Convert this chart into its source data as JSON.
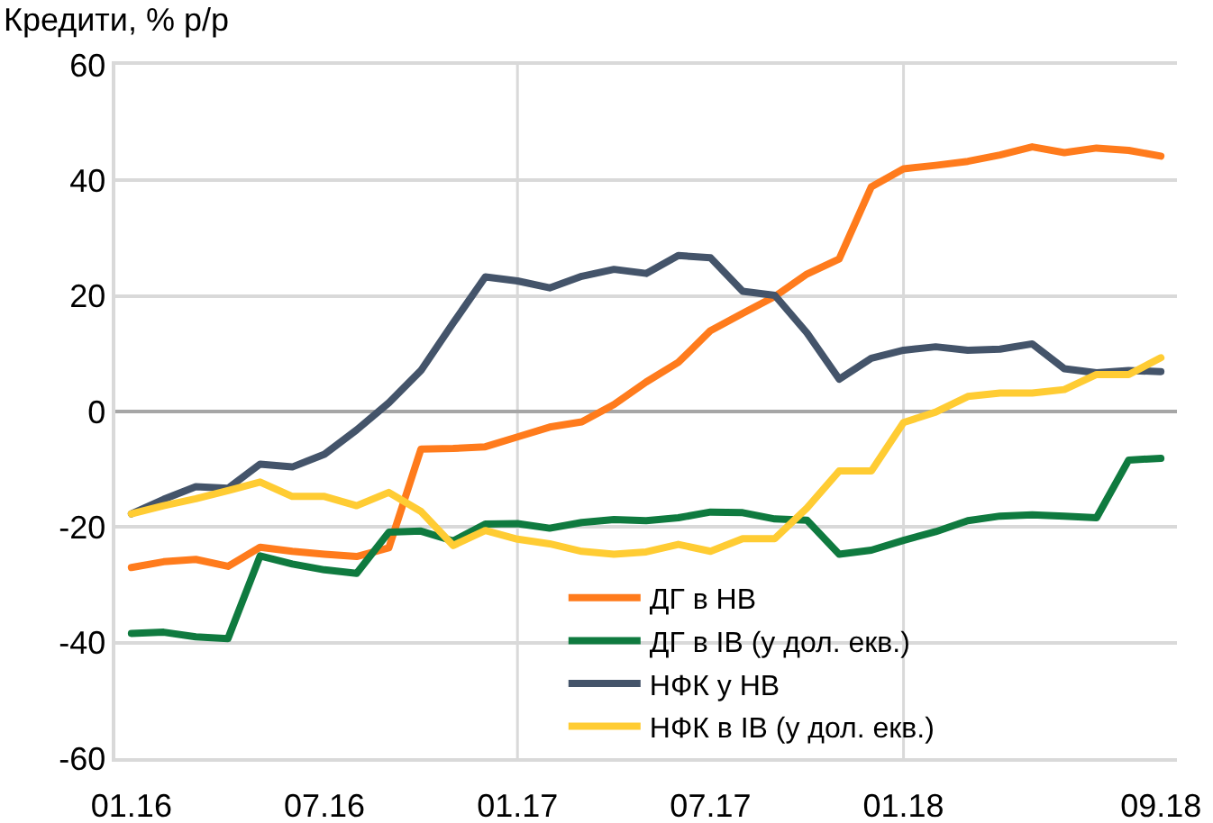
{
  "chart_data": {
    "type": "line",
    "title": "Кредити, % р/р",
    "categories": [
      "01.16",
      null,
      null,
      null,
      null,
      null,
      "07.16",
      null,
      null,
      null,
      null,
      null,
      "01.17",
      null,
      null,
      null,
      null,
      null,
      "07.17",
      null,
      null,
      null,
      null,
      null,
      "01.18",
      null,
      null,
      null,
      null,
      null,
      null,
      null,
      "09.18"
    ],
    "series": [
      {
        "name": "ДГ в НВ",
        "color": "#ff7b1c",
        "values": [
          -27.0,
          -26.0,
          -25.6,
          -26.8,
          -23.5,
          -24.2,
          -24.7,
          -25.1,
          -23.6,
          -6.5,
          -6.4,
          -6.1,
          -4.4,
          -2.7,
          -1.8,
          1.2,
          5.1,
          8.5,
          14.0,
          17.0,
          19.9,
          23.8,
          26.4,
          38.9,
          42.0,
          42.6,
          43.3,
          44.4,
          45.8,
          44.8,
          45.6,
          45.2,
          44.2
        ]
      },
      {
        "name": "ДГ в ІВ (у дол. екв.)",
        "color": "#0f7a3f",
        "values": [
          -38.4,
          -38.2,
          -39.0,
          -39.3,
          -25.0,
          -26.4,
          -27.4,
          -28.0,
          -20.9,
          -20.7,
          -22.4,
          -19.5,
          -19.4,
          -20.2,
          -19.2,
          -18.7,
          -18.9,
          -18.4,
          -17.4,
          -17.5,
          -18.6,
          -18.8,
          -24.7,
          -24.0,
          -22.3,
          -20.8,
          -18.9,
          -18.1,
          -17.9,
          -18.1,
          -18.4,
          -8.4,
          -8.1
        ]
      },
      {
        "name": "НФК у НВ",
        "color": "#44546a",
        "values": [
          -17.7,
          -15.2,
          -13.0,
          -13.3,
          -9.1,
          -9.6,
          -7.4,
          -3.2,
          1.5,
          7.1,
          15.3,
          23.3,
          22.6,
          21.4,
          23.4,
          24.6,
          23.9,
          27.0,
          26.6,
          20.8,
          20.1,
          13.6,
          5.6,
          9.2,
          10.6,
          11.2,
          10.6,
          10.8,
          11.7,
          7.4,
          6.7,
          7.1,
          6.9
        ]
      },
      {
        "name": "НФК в ІВ (у дол. екв.)",
        "color": "#ffcc33",
        "values": [
          -17.7,
          -16.3,
          -15.1,
          -13.7,
          -12.2,
          -14.7,
          -14.7,
          -16.3,
          -14.0,
          -17.3,
          -23.2,
          -20.6,
          -22.1,
          -22.9,
          -24.2,
          -24.7,
          -24.3,
          -23.0,
          -24.2,
          -22.0,
          -22.0,
          -16.7,
          -10.3,
          -10.3,
          -1.9,
          -0.1,
          2.6,
          3.2,
          3.2,
          3.8,
          6.4,
          6.4,
          9.3
        ]
      }
    ],
    "ylim": [
      -60,
      60
    ],
    "yticks": [
      -60,
      -40,
      -20,
      0,
      20,
      40,
      60
    ],
    "grid": "y",
    "legend": "bottom",
    "ref_lines": [
      {
        "axis": "y",
        "value": 0,
        "color": "#a6a6a6"
      },
      {
        "axis": "x",
        "value": "01.17",
        "color": "#d9d9d9"
      },
      {
        "axis": "x",
        "value": "01.18",
        "color": "#d9d9d9"
      }
    ]
  }
}
